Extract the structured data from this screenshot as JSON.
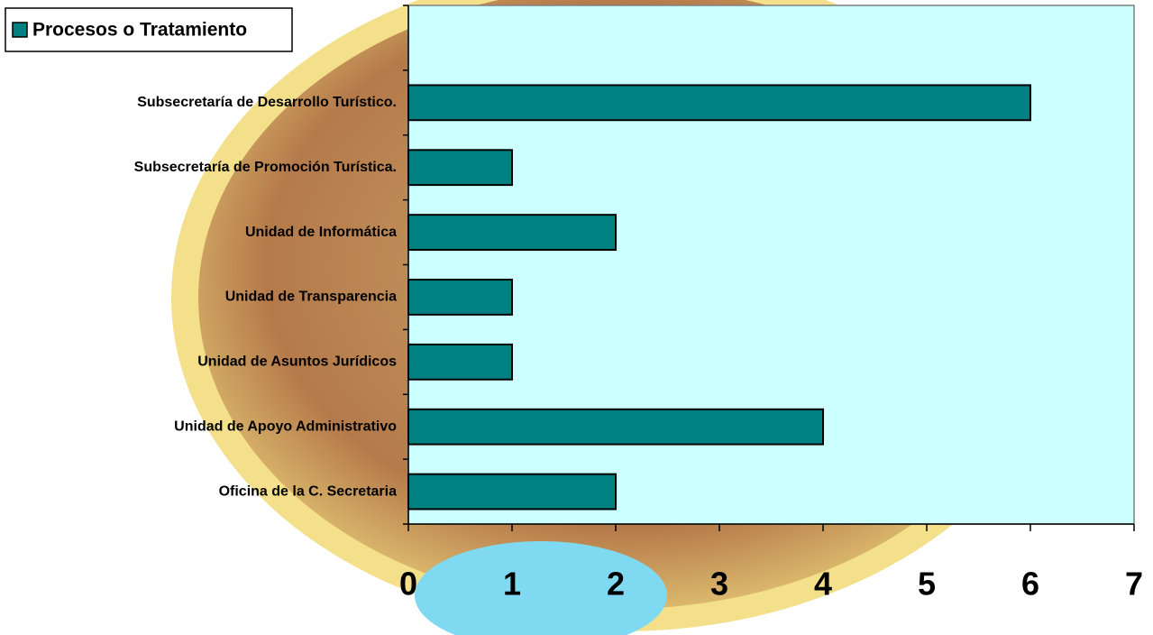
{
  "chart_data": {
    "type": "bar",
    "orientation": "horizontal",
    "categories": [
      null,
      "Subsecretaría de Desarrollo Turístico.",
      "Subsecretaría de Promoción Turística.",
      "Unidad de Informática",
      "Unidad de Transparencia",
      "Unidad de Asuntos Jurídicos",
      "Unidad de Apoyo Administrativo",
      "Oficina de la C. Secretaria"
    ],
    "series": [
      {
        "name": "Procesos o Tratamiento",
        "color": "#008080",
        "values": [
          null,
          6,
          1,
          2,
          1,
          1,
          4,
          2
        ]
      }
    ],
    "xlim": [
      0,
      7
    ],
    "xticks": [
      0,
      1,
      2,
      3,
      4,
      5,
      6,
      7
    ],
    "grid": false,
    "legend": "top-left",
    "plot_background": "#ccffff"
  }
}
